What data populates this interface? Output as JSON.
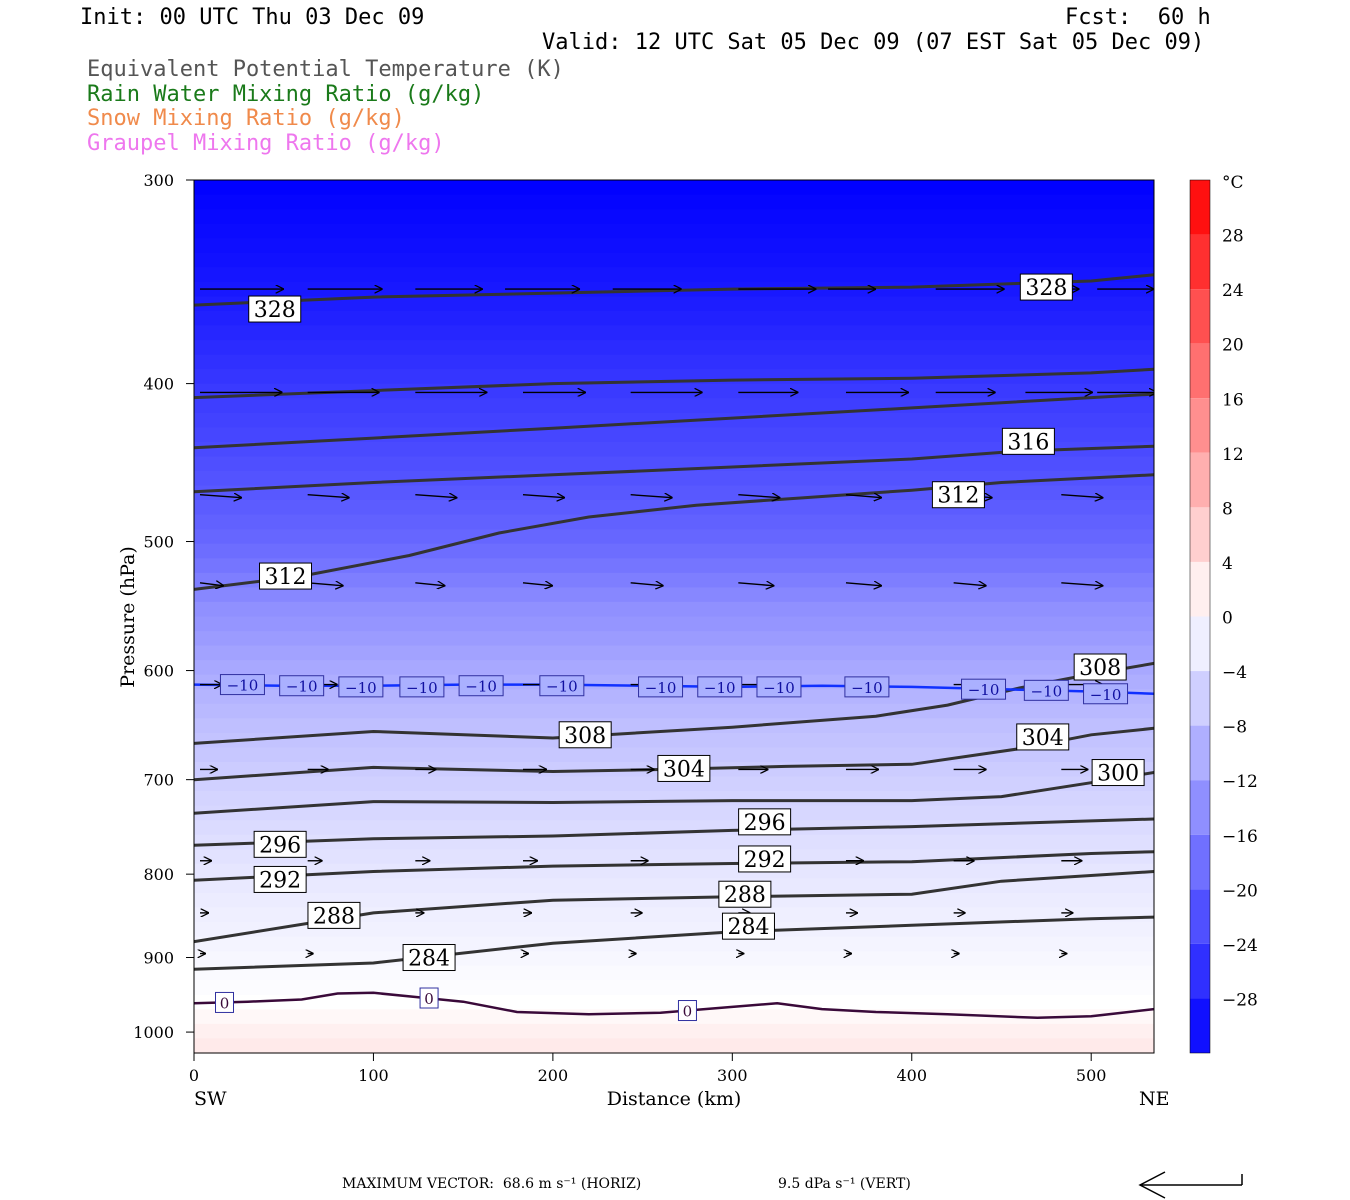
{
  "header": {
    "init": "Init: 00 UTC Thu 03 Dec 09",
    "fcst": "Fcst:  60 h",
    "valid": "Valid: 12 UTC Sat 05 Dec 09 (07 EST Sat 05 Dec 09)"
  },
  "legend": [
    {
      "label": "Equivalent Potential Temperature (K)",
      "color": "#555555"
    },
    {
      "label": "Rain Water Mixing Ratio (g/kg)",
      "color": "#1a7a1a"
    },
    {
      "label": "Snow Mixing Ratio (g/kg)",
      "color": "#f08a4b"
    },
    {
      "label": "Graupel Mixing Ratio (g/kg)",
      "color": "#ee77ee"
    }
  ],
  "footer": {
    "max_vector": "MAXIMUM VECTOR:  68.6 m s⁻¹ (HORIZ)",
    "vert": "9.5 dPa s⁻¹ (VERT)"
  },
  "chart_data": {
    "type": "cross-section",
    "xlabel": "Distance (km)",
    "ylabel": "Pressure (hPa)",
    "x_left_label": "SW",
    "x_right_label": "NE",
    "xlim": [
      0,
      535
    ],
    "ylim": [
      1030,
      300
    ],
    "y_scale": "log",
    "x_ticks": [
      0,
      100,
      200,
      300,
      400,
      500
    ],
    "y_ticks": [
      300,
      400,
      500,
      600,
      700,
      800,
      900,
      1000
    ],
    "colorbar": {
      "unit": "°C",
      "min": -32,
      "max": 32,
      "step": 4,
      "labels": [
        28,
        24,
        20,
        16,
        12,
        8,
        4,
        0,
        -4,
        -8,
        -12,
        -16,
        -20,
        -24,
        -28
      ]
    },
    "temperature_contours": [
      {
        "level": -10,
        "points": [
          [
            0,
            612
          ],
          [
            50,
            613
          ],
          [
            100,
            613
          ],
          [
            150,
            612
          ],
          [
            200,
            612
          ],
          [
            250,
            613
          ],
          [
            300,
            614
          ],
          [
            350,
            613
          ],
          [
            400,
            614
          ],
          [
            450,
            616
          ],
          [
            500,
            618
          ],
          [
            535,
            620
          ]
        ],
        "labels": [
          [
            27,
            612
          ],
          [
            60,
            613
          ],
          [
            93,
            614
          ],
          [
            127,
            614
          ],
          [
            160,
            613
          ],
          [
            205,
            613
          ],
          [
            260,
            614
          ],
          [
            293,
            614
          ],
          [
            326,
            614
          ],
          [
            375,
            614
          ],
          [
            440,
            616
          ],
          [
            475,
            617
          ],
          [
            508,
            620
          ]
        ]
      },
      {
        "level": 0,
        "points": [
          [
            0,
            960
          ],
          [
            30,
            958
          ],
          [
            60,
            955
          ],
          [
            80,
            947
          ],
          [
            100,
            946
          ],
          [
            125,
            952
          ],
          [
            150,
            958
          ],
          [
            180,
            972
          ],
          [
            220,
            975
          ],
          [
            260,
            973
          ],
          [
            300,
            965
          ],
          [
            325,
            960
          ],
          [
            350,
            968
          ],
          [
            380,
            972
          ],
          [
            420,
            975
          ],
          [
            470,
            980
          ],
          [
            500,
            978
          ],
          [
            535,
            968
          ]
        ],
        "labels": [
          [
            17,
            959
          ],
          [
            131,
            953
          ],
          [
            275,
            970
          ]
        ]
      }
    ],
    "theta_e_contours": [
      {
        "level": 328,
        "points": [
          [
            0,
            358
          ],
          [
            100,
            354
          ],
          [
            200,
            352
          ],
          [
            300,
            350
          ],
          [
            400,
            349
          ],
          [
            500,
            346
          ],
          [
            535,
            343
          ]
        ],
        "labels": [
          [
            45,
            360
          ],
          [
            475,
            349
          ]
        ]
      },
      {
        "level": 324,
        "points": [
          [
            0,
            408
          ],
          [
            100,
            404
          ],
          [
            200,
            400
          ],
          [
            300,
            398
          ],
          [
            400,
            397
          ],
          [
            500,
            394
          ],
          [
            535,
            392
          ]
        ],
        "labels": []
      },
      {
        "level": 320,
        "points": [
          [
            0,
            438
          ],
          [
            100,
            432
          ],
          [
            200,
            426
          ],
          [
            300,
            420
          ],
          [
            400,
            414
          ],
          [
            500,
            408
          ],
          [
            535,
            406
          ]
        ],
        "labels": []
      },
      {
        "level": 316,
        "points": [
          [
            0,
            466
          ],
          [
            100,
            460
          ],
          [
            200,
            455
          ],
          [
            300,
            450
          ],
          [
            400,
            445
          ],
          [
            460,
            440
          ],
          [
            535,
            437
          ]
        ],
        "labels": [
          [
            465,
            434
          ]
        ]
      },
      {
        "level": 312,
        "points": [
          [
            0,
            535
          ],
          [
            60,
            525
          ],
          [
            120,
            510
          ],
          [
            170,
            494
          ],
          [
            220,
            483
          ],
          [
            280,
            475
          ],
          [
            340,
            470
          ],
          [
            400,
            465
          ],
          [
            450,
            460
          ],
          [
            535,
            455
          ]
        ],
        "labels": [
          [
            51,
            525
          ],
          [
            426,
            468
          ]
        ]
      },
      {
        "level": 308,
        "points": [
          [
            0,
            665
          ],
          [
            100,
            654
          ],
          [
            200,
            660
          ],
          [
            300,
            650
          ],
          [
            380,
            640
          ],
          [
            420,
            630
          ],
          [
            460,
            615
          ],
          [
            500,
            603
          ],
          [
            535,
            594
          ]
        ],
        "labels": [
          [
            218,
            657
          ],
          [
            505,
            597
          ]
        ]
      },
      {
        "level": 304,
        "points": [
          [
            0,
            700
          ],
          [
            100,
            688
          ],
          [
            200,
            692
          ],
          [
            260,
            690
          ],
          [
            330,
            687
          ],
          [
            400,
            685
          ],
          [
            460,
            670
          ],
          [
            500,
            657
          ],
          [
            535,
            651
          ]
        ],
        "labels": [
          [
            273,
            689
          ],
          [
            473,
            659
          ]
        ]
      },
      {
        "level": 300,
        "points": [
          [
            0,
            734
          ],
          [
            100,
            722
          ],
          [
            200,
            723
          ],
          [
            300,
            721
          ],
          [
            400,
            721
          ],
          [
            450,
            717
          ],
          [
            500,
            703
          ],
          [
            535,
            693
          ]
        ],
        "labels": [
          [
            515,
            693
          ]
        ]
      },
      {
        "level": 296,
        "points": [
          [
            0,
            768
          ],
          [
            100,
            761
          ],
          [
            200,
            758
          ],
          [
            300,
            752
          ],
          [
            400,
            748
          ],
          [
            500,
            742
          ],
          [
            535,
            740
          ]
        ],
        "labels": [
          [
            48,
            767
          ],
          [
            318,
            743
          ]
        ]
      },
      {
        "level": 292,
        "points": [
          [
            0,
            807
          ],
          [
            100,
            797
          ],
          [
            200,
            791
          ],
          [
            300,
            788
          ],
          [
            400,
            786
          ],
          [
            500,
            777
          ],
          [
            535,
            775
          ]
        ],
        "labels": [
          [
            48,
            806
          ],
          [
            318,
            783
          ]
        ]
      },
      {
        "level": 288,
        "points": [
          [
            0,
            880
          ],
          [
            100,
            845
          ],
          [
            200,
            830
          ],
          [
            300,
            826
          ],
          [
            400,
            823
          ],
          [
            450,
            808
          ],
          [
            535,
            797
          ]
        ],
        "labels": [
          [
            78,
            848
          ],
          [
            307,
            823
          ]
        ]
      },
      {
        "level": 284,
        "points": [
          [
            0,
            915
          ],
          [
            100,
            907
          ],
          [
            200,
            882
          ],
          [
            300,
            868
          ],
          [
            400,
            860
          ],
          [
            500,
            852
          ],
          [
            535,
            850
          ]
        ],
        "labels": [
          [
            131,
            900
          ],
          [
            309,
            861
          ]
        ]
      }
    ],
    "wind_vectors": [
      [
        0,
        350,
        56
      ],
      [
        60,
        350,
        50
      ],
      [
        120,
        350,
        45
      ],
      [
        170,
        350,
        50
      ],
      [
        230,
        350,
        46
      ],
      [
        300,
        350,
        52
      ],
      [
        350,
        350,
        32
      ],
      [
        410,
        350,
        46
      ],
      [
        460,
        350,
        36
      ],
      [
        500,
        350,
        38
      ],
      [
        0,
        405,
        55
      ],
      [
        60,
        405,
        48
      ],
      [
        120,
        405,
        48
      ],
      [
        180,
        405,
        42
      ],
      [
        240,
        405,
        48
      ],
      [
        300,
        405,
        40
      ],
      [
        360,
        405,
        42
      ],
      [
        410,
        405,
        40
      ],
      [
        460,
        405,
        45
      ],
      [
        500,
        405,
        40
      ],
      [
        0,
        468,
        28
      ],
      [
        60,
        468,
        28
      ],
      [
        120,
        468,
        28
      ],
      [
        180,
        468,
        28
      ],
      [
        240,
        468,
        28
      ],
      [
        300,
        468,
        28
      ],
      [
        360,
        468,
        24
      ],
      [
        420,
        468,
        26
      ],
      [
        480,
        468,
        28
      ],
      [
        0,
        530,
        16
      ],
      [
        60,
        530,
        24
      ],
      [
        120,
        530,
        20
      ],
      [
        180,
        530,
        20
      ],
      [
        240,
        530,
        22
      ],
      [
        300,
        530,
        24
      ],
      [
        360,
        530,
        24
      ],
      [
        420,
        530,
        22
      ],
      [
        480,
        530,
        28
      ],
      [
        0,
        612,
        15
      ],
      [
        60,
        612,
        20
      ],
      [
        120,
        612,
        15
      ],
      [
        180,
        612,
        20
      ],
      [
        240,
        612,
        22
      ],
      [
        300,
        612,
        25
      ],
      [
        360,
        612,
        20
      ],
      [
        420,
        612,
        20
      ],
      [
        480,
        612,
        28
      ],
      [
        0,
        690,
        12
      ],
      [
        60,
        690,
        14
      ],
      [
        120,
        690,
        14
      ],
      [
        180,
        690,
        16
      ],
      [
        240,
        690,
        16
      ],
      [
        300,
        690,
        20
      ],
      [
        360,
        690,
        22
      ],
      [
        420,
        690,
        22
      ],
      [
        480,
        690,
        18
      ],
      [
        0,
        785,
        8
      ],
      [
        60,
        785,
        10
      ],
      [
        120,
        785,
        10
      ],
      [
        180,
        785,
        10
      ],
      [
        240,
        785,
        12
      ],
      [
        300,
        785,
        12
      ],
      [
        360,
        785,
        12
      ],
      [
        420,
        785,
        14
      ],
      [
        480,
        785,
        14
      ],
      [
        0,
        845,
        6
      ],
      [
        60,
        845,
        6
      ],
      [
        120,
        845,
        6
      ],
      [
        180,
        845,
        6
      ],
      [
        240,
        845,
        8
      ],
      [
        300,
        845,
        8
      ],
      [
        360,
        845,
        8
      ],
      [
        420,
        845,
        8
      ],
      [
        480,
        845,
        8
      ],
      [
        0,
        895,
        4
      ],
      [
        60,
        895,
        4
      ],
      [
        120,
        895,
        4
      ],
      [
        180,
        895,
        4
      ],
      [
        240,
        895,
        4
      ],
      [
        300,
        895,
        4
      ],
      [
        360,
        895,
        4
      ],
      [
        420,
        895,
        4
      ],
      [
        480,
        895,
        4
      ]
    ]
  }
}
